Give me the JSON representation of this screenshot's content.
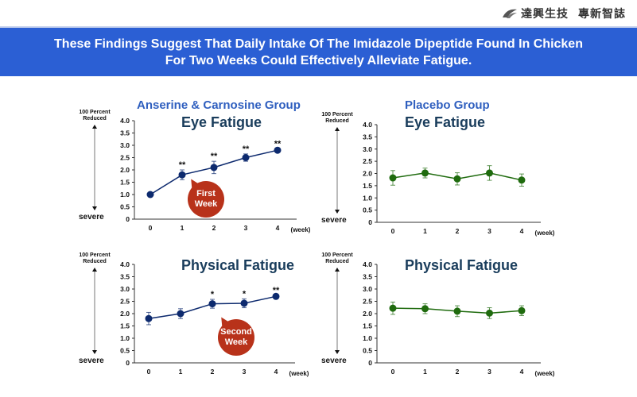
{
  "brand": {
    "icon": "wing-logo-icon",
    "name": "達興生技",
    "tagline": "專新智誌"
  },
  "banner": {
    "line1": "These Findings Suggest That Daily Intake Of The Imidazole Dipeptide Found In Chicken",
    "line2": "For Two Weeks Could Effectively Alleviate Fatigue."
  },
  "side_labels": {
    "top_line1": "100 Percent",
    "top_line2": "Reduced",
    "bottom": "severe"
  },
  "bubbles": {
    "first": [
      "First",
      "Week"
    ],
    "second": [
      "Second",
      "Week"
    ]
  },
  "colors": {
    "anserine": "#0D2A6E",
    "placebo": "#1F6B0E",
    "bubble": "#B8321A",
    "banner": "#2B5FD4"
  },
  "chart_data": [
    {
      "type": "line",
      "group": "Anserine & Carnosine Group",
      "title": "Eye Fatigue",
      "xlabel": "(week)",
      "x": [
        0,
        1,
        2,
        3,
        4
      ],
      "ylim": [
        0,
        4.0
      ],
      "yticks": [
        "0",
        "0.5",
        "1.0",
        "1.5",
        "2.0",
        "2.5",
        "3.0",
        "3.5",
        "4.0"
      ],
      "series": [
        {
          "name": "Anserine & Carnosine",
          "values": [
            1.0,
            1.8,
            2.1,
            2.5,
            2.8
          ],
          "errors": [
            0,
            0.2,
            0.25,
            0.15,
            0.05
          ],
          "significance": [
            "",
            "**",
            "**",
            "**",
            "**"
          ]
        }
      ],
      "annotation": "First Week"
    },
    {
      "type": "line",
      "group": "Placebo Group",
      "title": "Eye Fatigue",
      "xlabel": "(week)",
      "x": [
        0,
        1,
        2,
        3,
        4
      ],
      "ylim": [
        0,
        4.0
      ],
      "yticks": [
        "0",
        "0.5",
        "1.0",
        "1.5",
        "2.0",
        "2.5",
        "3.0",
        "3.5",
        "4.0"
      ],
      "series": [
        {
          "name": "Placebo",
          "values": [
            1.82,
            2.02,
            1.78,
            2.02,
            1.73
          ],
          "errors": [
            0.3,
            0.2,
            0.25,
            0.3,
            0.25
          ],
          "significance": [
            "",
            "",
            "",
            "",
            ""
          ]
        }
      ]
    },
    {
      "type": "line",
      "group": "",
      "title": "Physical Fatigue",
      "xlabel": "(week)",
      "x": [
        0,
        1,
        2,
        3,
        4
      ],
      "ylim": [
        0,
        4.0
      ],
      "yticks": [
        "0",
        "0.5",
        "1.0",
        "1.5",
        "2.0",
        "2.5",
        "3.0",
        "3.5",
        "4.0"
      ],
      "series": [
        {
          "name": "Anserine & Carnosine",
          "values": [
            1.8,
            2.0,
            2.4,
            2.42,
            2.7
          ],
          "errors": [
            0.25,
            0.2,
            0.18,
            0.18,
            0.05
          ],
          "significance": [
            "",
            "",
            "*",
            "*",
            "**"
          ]
        }
      ],
      "annotation": "Second Week"
    },
    {
      "type": "line",
      "group": "",
      "title": "Physical Fatigue",
      "xlabel": "(week)",
      "x": [
        0,
        1,
        2,
        3,
        4
      ],
      "ylim": [
        0,
        4.0
      ],
      "yticks": [
        "0",
        "0.5",
        "1.0",
        "1.5",
        "2.0",
        "2.5",
        "3.0",
        "3.5",
        "4.0"
      ],
      "series": [
        {
          "name": "Placebo",
          "values": [
            2.22,
            2.2,
            2.1,
            2.02,
            2.12
          ],
          "errors": [
            0.25,
            0.2,
            0.22,
            0.22,
            0.2
          ],
          "significance": [
            "",
            "",
            "",
            "",
            ""
          ]
        }
      ]
    }
  ]
}
